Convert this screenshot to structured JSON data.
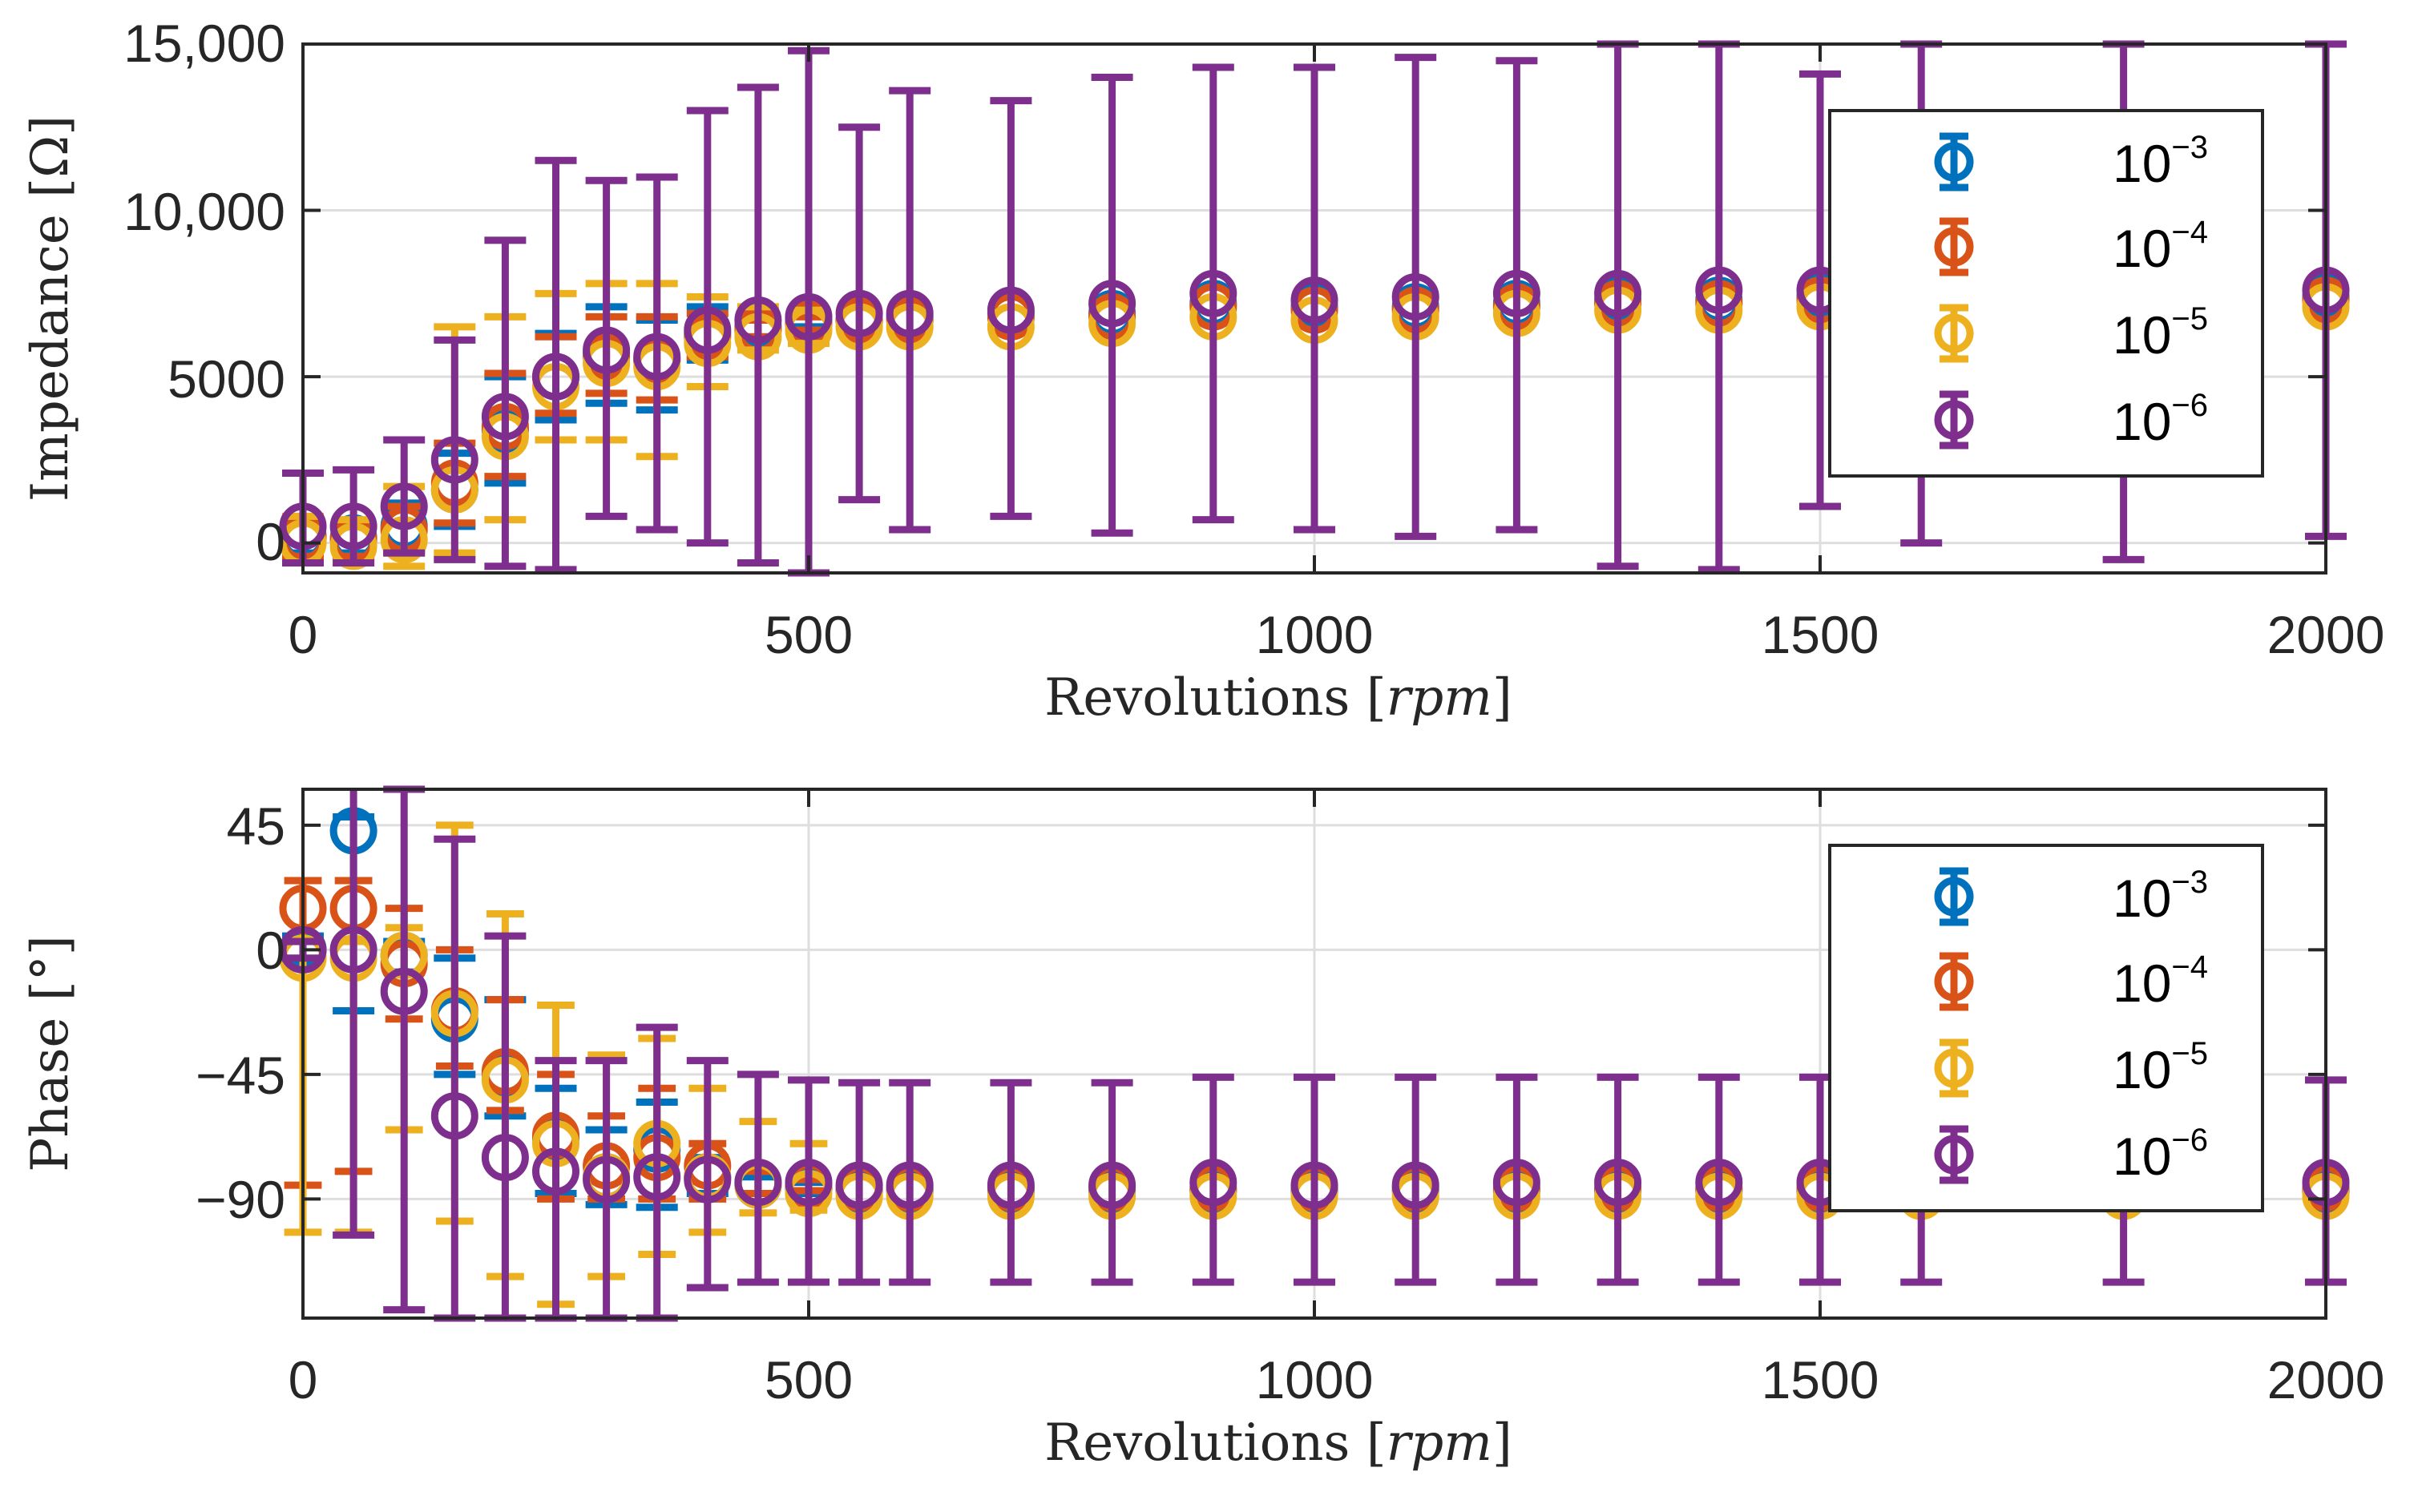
{
  "chart_data": [
    {
      "type": "scatter",
      "subtype": "errorbar",
      "xlabel": "Revolutions",
      "xunit": "rpm",
      "ylabel": "Impedance",
      "yunit": "Ω",
      "xlim": [
        0,
        2000
      ],
      "ylim": [
        -900,
        15000
      ],
      "xticks": [
        0,
        500,
        1000,
        1500,
        2000
      ],
      "xtick_labels": [
        "0",
        "500",
        "1000",
        "1500",
        "2000"
      ],
      "yticks": [
        0,
        5000,
        10000,
        15000
      ],
      "ytick_labels": [
        "0",
        "5000",
        "10,000",
        "15,000"
      ],
      "grid": true,
      "legend_position": "top-right",
      "x": [
        0,
        50,
        100,
        150,
        200,
        250,
        300,
        350,
        400,
        450,
        500,
        550,
        600,
        700,
        800,
        900,
        1000,
        1100,
        1200,
        1300,
        1400,
        1500,
        1600,
        1800,
        2000
      ],
      "series": [
        {
          "name": "10",
          "exponent": "−3",
          "color": "#0072BD",
          "values": [
            200,
            150,
            500,
            1600,
            3400,
            5000,
            5700,
            5500,
            6300,
            6500,
            6700,
            6700,
            6800,
            6900,
            6900,
            7200,
            7100,
            7100,
            7200,
            7300,
            7300,
            7400,
            7400,
            7400,
            7400
          ],
          "lower": [
            -300,
            -300,
            -200,
            500,
            1800,
            3700,
            4200,
            4000,
            5500,
            6100,
            6500,
            null,
            null,
            null,
            null,
            null,
            null,
            null,
            null,
            null,
            null,
            null,
            null,
            null,
            null
          ],
          "upper": [
            700,
            600,
            1200,
            2700,
            5000,
            6300,
            7100,
            6700,
            7100,
            6900,
            6900,
            null,
            null,
            null,
            null,
            null,
            null,
            null,
            null,
            null,
            null,
            null,
            null,
            null,
            null
          ]
        },
        {
          "name": "10",
          "exponent": "−4",
          "color": "#D95319",
          "values": [
            150,
            100,
            400,
            1800,
            3500,
            5000,
            5600,
            5500,
            6200,
            6400,
            6600,
            6700,
            6700,
            6800,
            6800,
            7100,
            7000,
            7000,
            7100,
            7200,
            7200,
            7300,
            7300,
            7300,
            7300
          ],
          "lower": [
            -400,
            -400,
            -300,
            600,
            2000,
            3900,
            4500,
            4300,
            5600,
            6200,
            6400,
            null,
            null,
            null,
            null,
            null,
            null,
            null,
            null,
            null,
            null,
            null,
            null,
            null,
            null
          ],
          "upper": [
            700,
            600,
            1100,
            3000,
            5100,
            6200,
            6800,
            6800,
            6900,
            6700,
            6800,
            null,
            null,
            null,
            null,
            null,
            null,
            null,
            null,
            null,
            null,
            null,
            null,
            null,
            null
          ]
        },
        {
          "name": "10",
          "exponent": "−5",
          "color": "#EDB120",
          "values": [
            0,
            -100,
            100,
            1600,
            3200,
            4700,
            5400,
            5300,
            6000,
            6200,
            6400,
            6500,
            6500,
            6500,
            6600,
            6800,
            6700,
            6800,
            6900,
            7000,
            7000,
            7100,
            7100,
            7100,
            7100
          ],
          "lower": [
            -600,
            -600,
            -700,
            -300,
            700,
            3100,
            3100,
            2600,
            4700,
            5800,
            6000,
            null,
            null,
            null,
            null,
            null,
            null,
            null,
            null,
            null,
            null,
            null,
            null,
            null,
            null
          ],
          "upper": [
            800,
            700,
            1700,
            6500,
            6800,
            7500,
            7800,
            7800,
            7400,
            7100,
            7000,
            null,
            null,
            null,
            null,
            null,
            null,
            null,
            null,
            null,
            null,
            null,
            null,
            null,
            null
          ]
        },
        {
          "name": "10",
          "exponent": "−6",
          "color": "#7E2F8E",
          "values": [
            500,
            500,
            1100,
            2500,
            3800,
            5000,
            5800,
            5600,
            6400,
            6700,
            6800,
            6900,
            6900,
            7000,
            7200,
            7500,
            7300,
            7400,
            7500,
            7500,
            7600,
            7600,
            7600,
            7600,
            7600
          ],
          "lower": [
            -600,
            -600,
            -300,
            -500,
            -700,
            -800,
            800,
            400,
            0,
            -600,
            -900,
            1300,
            400,
            800,
            300,
            700,
            400,
            200,
            400,
            -700,
            -800,
            1100,
            0,
            -500,
            200
          ],
          "upper": [
            2100,
            2200,
            3100,
            6100,
            9100,
            11500,
            10900,
            11000,
            13000,
            13700,
            14800,
            12500,
            13600,
            13300,
            14000,
            14300,
            14300,
            14600,
            14500,
            15000,
            15000,
            14100,
            15000,
            15000,
            15000
          ]
        }
      ]
    },
    {
      "type": "scatter",
      "subtype": "errorbar",
      "xlabel": "Revolutions",
      "xunit": "rpm",
      "ylabel": "Phase",
      "yunit": "°",
      "xlim": [
        0,
        2000
      ],
      "ylim": [
        -133,
        58
      ],
      "xticks": [
        0,
        500,
        1000,
        1500,
        2000
      ],
      "xtick_labels": [
        "0",
        "500",
        "1000",
        "1500",
        "2000"
      ],
      "yticks": [
        45,
        0,
        -45,
        -90
      ],
      "ytick_labels": [
        "45",
        "0",
        "−45",
        "−90"
      ],
      "grid": true,
      "legend_position": "top-right",
      "x": [
        0,
        50,
        100,
        150,
        200,
        250,
        300,
        350,
        400,
        450,
        500,
        550,
        600,
        700,
        800,
        900,
        1000,
        1100,
        1200,
        1300,
        1400,
        1500,
        1600,
        1800,
        2000
      ],
      "series": [
        {
          "name": "10",
          "exponent": "−3",
          "color": "#0072BD",
          "values": [
            0,
            43,
            -2,
            -25,
            -45,
            -68,
            -82,
            -72,
            -82,
            -85,
            -86,
            -87,
            -87,
            -87,
            -87,
            -87,
            -87,
            -87,
            -87,
            -87,
            -87,
            -87,
            -87,
            -87,
            -87
          ],
          "lower": [
            -5,
            -22,
            -8,
            -45,
            -60,
            -88,
            -92,
            -93,
            -88,
            -88,
            -88,
            null,
            null,
            null,
            null,
            null,
            null,
            null,
            null,
            null,
            null,
            null,
            null,
            null,
            null
          ],
          "upper": [
            5,
            48,
            3,
            -3,
            -18,
            -50,
            -65,
            -55,
            -75,
            -82,
            -84,
            null,
            null,
            null,
            null,
            null,
            null,
            null,
            null,
            null,
            null,
            null,
            null,
            null,
            null
          ]
        },
        {
          "name": "10",
          "exponent": "−4",
          "color": "#D95319",
          "values": [
            15,
            15,
            -5,
            -22,
            -44,
            -67,
            -78,
            -75,
            -78,
            -84,
            -85,
            -86,
            -86,
            -86,
            -86,
            -86,
            -86,
            -86,
            -86,
            -86,
            -86,
            -86,
            -86,
            -86,
            -86
          ],
          "lower": [
            -85,
            -80,
            -25,
            -42,
            -58,
            -90,
            -90,
            -90,
            -90,
            -88,
            -87,
            null,
            null,
            null,
            null,
            null,
            null,
            null,
            null,
            null,
            null,
            null,
            null,
            null,
            null
          ],
          "upper": [
            25,
            25,
            15,
            0,
            -18,
            -45,
            -60,
            -50,
            -70,
            -80,
            -83,
            null,
            null,
            null,
            null,
            null,
            null,
            null,
            null,
            null,
            null,
            null,
            null,
            null,
            null
          ],
          "cap_width": 0.9
        },
        {
          "name": "10",
          "exponent": "−5",
          "color": "#EDB120",
          "values": [
            -3,
            -3,
            -2,
            -23,
            -47,
            -70,
            -82,
            -70,
            -82,
            -85,
            -88,
            -89,
            -89,
            -89,
            -89,
            -89,
            -89,
            -89,
            -89,
            -89,
            -89,
            -89,
            -89,
            -89,
            -89
          ],
          "lower": [
            -102,
            -102,
            -65,
            -98,
            -118,
            -128,
            -118,
            -110,
            -102,
            -95,
            -94,
            null,
            null,
            null,
            null,
            null,
            null,
            null,
            null,
            null,
            null,
            null,
            null,
            null,
            null
          ],
          "upper": [
            3,
            3,
            8,
            45,
            13,
            -20,
            -38,
            -32,
            -50,
            -62,
            -70,
            null,
            null,
            null,
            null,
            null,
            null,
            null,
            null,
            null,
            null,
            null,
            null,
            null,
            null
          ],
          "cap_width": 0.9
        },
        {
          "name": "10",
          "exponent": "−6",
          "color": "#7E2F8E",
          "values": [
            0,
            0,
            -15,
            -60,
            -75,
            -80,
            -83,
            -82,
            -83,
            -84,
            -84,
            -85,
            -85,
            -85,
            -85,
            -84,
            -85,
            -85,
            -84,
            -84,
            -84,
            -84,
            -84,
            -84,
            -84
          ],
          "lower": [
            -3,
            -103,
            -130,
            -133,
            -133,
            -133,
            -133,
            -133,
            -122,
            -120,
            -120,
            -120,
            -120,
            -120,
            -120,
            -120,
            -120,
            -120,
            -120,
            -120,
            -120,
            -120,
            -120,
            -120,
            -120
          ],
          "upper": [
            3,
            60,
            58,
            40,
            5,
            -40,
            -40,
            -28,
            -40,
            -45,
            -47,
            -48,
            -48,
            -48,
            -48,
            -46,
            -46,
            -46,
            -46,
            -46,
            -46,
            -46,
            -46,
            -46,
            -47
          ]
        }
      ]
    }
  ]
}
